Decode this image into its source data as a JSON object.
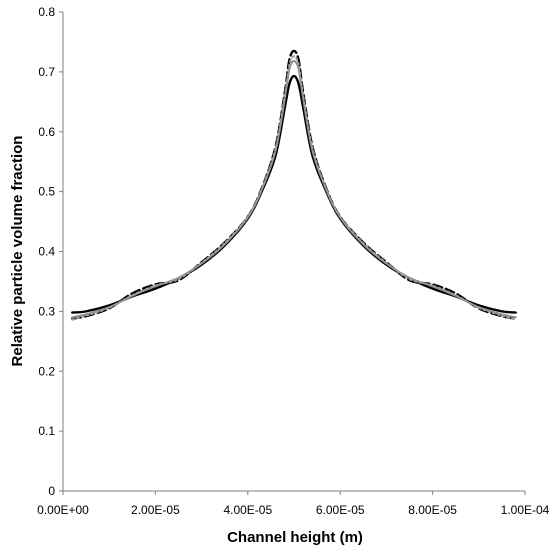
{
  "chart_data": {
    "type": "line",
    "title": "",
    "xlabel": "Channel height (m)",
    "ylabel": "Relative particle volume fraction",
    "xlim": [
      0,
      0.0001
    ],
    "ylim": [
      0,
      0.8
    ],
    "x_ticks": [
      "0.00E+00",
      "2.00E-05",
      "4.00E-05",
      "6.00E-05",
      "8.00E-05",
      "1.00E-04"
    ],
    "y_ticks": [
      "0",
      "0.1",
      "0.2",
      "0.3",
      "0.4",
      "0.5",
      "0.6",
      "0.7",
      "0.8"
    ],
    "grid": false,
    "legend": "none",
    "series": [
      {
        "style": "solid-thick",
        "color": "#000000",
        "x": [
          2e-06,
          5e-06,
          1e-05,
          1.5e-05,
          2e-05,
          2.5e-05,
          3e-05,
          3.5e-05,
          4e-05,
          4.3e-05,
          4.6e-05,
          4.8e-05,
          4.9e-05,
          5e-05,
          5.1e-05,
          5.2e-05,
          5.4e-05,
          5.7e-05,
          6e-05,
          6.5e-05,
          7e-05,
          7.5e-05,
          8e-05,
          8.5e-05,
          9e-05,
          9.5e-05,
          9.8e-05
        ],
        "y": [
          0.298,
          0.3,
          0.31,
          0.325,
          0.338,
          0.355,
          0.378,
          0.41,
          0.455,
          0.5,
          0.56,
          0.64,
          0.68,
          0.693,
          0.68,
          0.64,
          0.56,
          0.5,
          0.455,
          0.41,
          0.378,
          0.355,
          0.338,
          0.325,
          0.31,
          0.3,
          0.298
        ]
      },
      {
        "style": "dashed",
        "color": "#000000",
        "x": [
          2e-06,
          5e-06,
          1e-05,
          1.5e-05,
          2e-05,
          2.5e-05,
          3e-05,
          3.5e-05,
          4e-05,
          4.3e-05,
          4.6e-05,
          4.8e-05,
          4.9e-05,
          5e-05,
          5.1e-05,
          5.2e-05,
          5.4e-05,
          5.7e-05,
          6e-05,
          6.5e-05,
          7e-05,
          7.5e-05,
          8e-05,
          8.5e-05,
          9e-05,
          9.5e-05,
          9.8e-05
        ],
        "y": [
          0.288,
          0.292,
          0.305,
          0.33,
          0.345,
          0.352,
          0.382,
          0.415,
          0.458,
          0.505,
          0.575,
          0.665,
          0.72,
          0.735,
          0.72,
          0.665,
          0.575,
          0.505,
          0.458,
          0.415,
          0.382,
          0.352,
          0.345,
          0.33,
          0.305,
          0.292,
          0.288
        ]
      },
      {
        "style": "solid-gray",
        "color": "#8c8c8c",
        "x": [
          2e-06,
          5e-06,
          1e-05,
          1.5e-05,
          2e-05,
          2.5e-05,
          3e-05,
          3.5e-05,
          4e-05,
          4.3e-05,
          4.6e-05,
          4.8e-05,
          4.9e-05,
          5e-05,
          5.1e-05,
          5.2e-05,
          5.4e-05,
          5.7e-05,
          6e-05,
          6.5e-05,
          7e-05,
          7.5e-05,
          8e-05,
          8.5e-05,
          9e-05,
          9.5e-05,
          9.8e-05
        ],
        "y": [
          0.29,
          0.295,
          0.307,
          0.326,
          0.342,
          0.356,
          0.38,
          0.412,
          0.457,
          0.503,
          0.568,
          0.655,
          0.705,
          0.718,
          0.705,
          0.655,
          0.568,
          0.503,
          0.457,
          0.412,
          0.38,
          0.356,
          0.342,
          0.326,
          0.307,
          0.295,
          0.29
        ]
      },
      {
        "style": "dotted-gray",
        "color": "#9a9a9a",
        "x": [
          2e-06,
          5e-06,
          1e-05,
          1.5e-05,
          2e-05,
          2.5e-05,
          3e-05,
          3.5e-05,
          4e-05,
          4.3e-05,
          4.6e-05,
          4.8e-05,
          4.9e-05,
          5e-05,
          5.1e-05,
          5.2e-05,
          5.4e-05,
          5.7e-05,
          6e-05,
          6.5e-05,
          7e-05,
          7.5e-05,
          8e-05,
          8.5e-05,
          9e-05,
          9.5e-05,
          9.8e-05
        ],
        "y": [
          0.286,
          0.293,
          0.306,
          0.327,
          0.343,
          0.354,
          0.381,
          0.414,
          0.458,
          0.504,
          0.572,
          0.66,
          0.712,
          0.726,
          0.712,
          0.66,
          0.572,
          0.504,
          0.458,
          0.414,
          0.381,
          0.354,
          0.343,
          0.327,
          0.306,
          0.293,
          0.286
        ]
      }
    ]
  }
}
